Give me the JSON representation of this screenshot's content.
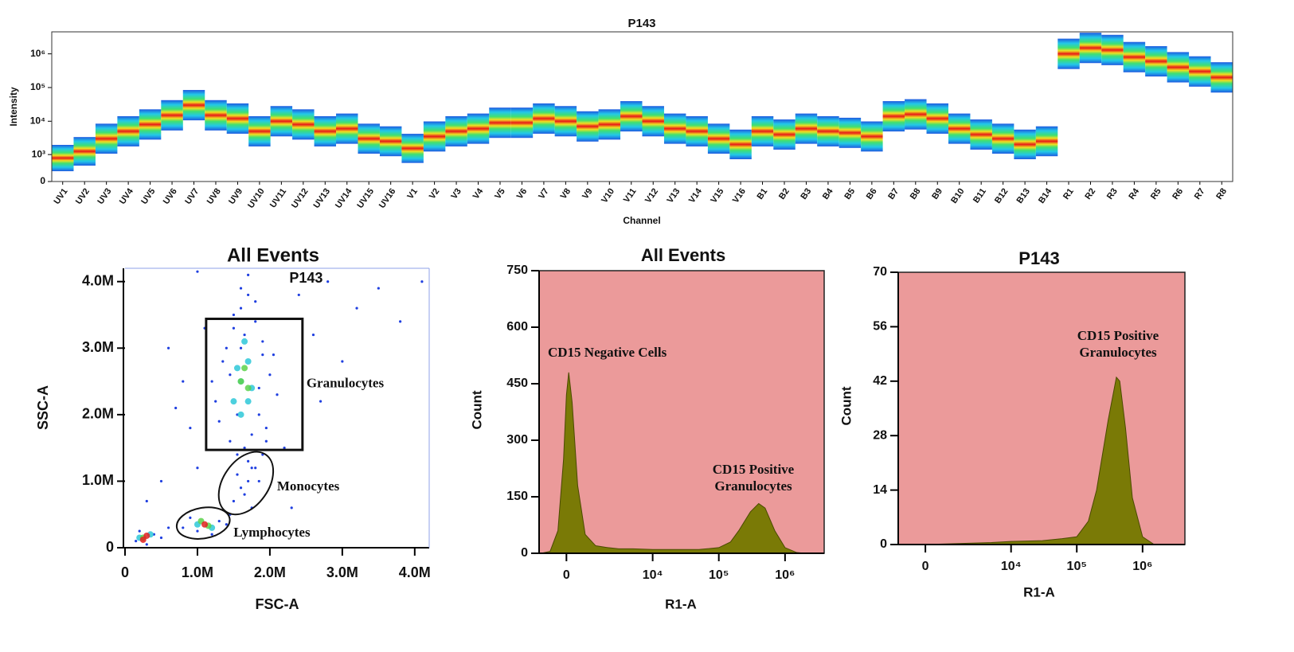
{
  "chart_data": [
    {
      "type": "spectrum",
      "title": "P143",
      "x_label": "Channel",
      "y_label": "Intensity",
      "yscale": "biexponential",
      "categories": [
        "UV1",
        "UV2",
        "UV3",
        "UV4",
        "UV5",
        "UV6",
        "UV7",
        "UV8",
        "UV9",
        "UV10",
        "UV11",
        "UV12",
        "UV13",
        "UV14",
        "UV15",
        "UV16",
        "V1",
        "V2",
        "V3",
        "V4",
        "V5",
        "V6",
        "V7",
        "V8",
        "V9",
        "V10",
        "V11",
        "V12",
        "V13",
        "V14",
        "V15",
        "V16",
        "B1",
        "B2",
        "B3",
        "B4",
        "B5",
        "B6",
        "B7",
        "B8",
        "B9",
        "B10",
        "B11",
        "B12",
        "B13",
        "B14",
        "R1",
        "R2",
        "R3",
        "R4",
        "R5",
        "R6",
        "R7",
        "R8"
      ],
      "values": [
        700,
        1200,
        3000,
        5000,
        8000,
        15000,
        30000,
        15000,
        12000,
        5000,
        10000,
        8000,
        5000,
        6000,
        3000,
        2500,
        1500,
        3500,
        5000,
        6000,
        9000,
        9000,
        12000,
        10000,
        7000,
        8000,
        14000,
        10000,
        6000,
        5000,
        3000,
        2000,
        5000,
        4000,
        6000,
        5000,
        4500,
        3500,
        14000,
        16000,
        12000,
        6000,
        4000,
        3000,
        2000,
        2500,
        1000000,
        1500000,
        1300000,
        800000,
        600000,
        400000,
        300000,
        200000
      ],
      "ylim": [
        0,
        4500000
      ],
      "yticks": [
        0,
        {
          "value": 1000,
          "label": "10³"
        },
        {
          "value": 10000,
          "label": "10⁴"
        },
        {
          "value": 100000,
          "label": "10⁵"
        },
        {
          "value": 1000000,
          "label": "10⁶"
        }
      ]
    },
    {
      "type": "scatter",
      "title": "All Events",
      "x_label": "FSC-A",
      "y_label": "SSC-A",
      "xlim": [
        0,
        4200000
      ],
      "ylim": [
        0,
        4200000
      ],
      "xticks": [
        0,
        {
          "value": 1000000,
          "label": "1.0M"
        },
        {
          "value": 2000000,
          "label": "2.0M"
        },
        {
          "value": 3000000,
          "label": "3.0M"
        },
        {
          "value": 4000000,
          "label": "4.0M"
        }
      ],
      "yticks": [
        0,
        {
          "value": 1000000,
          "label": "1.0M"
        },
        {
          "value": 2000000,
          "label": "2.0M"
        },
        {
          "value": 3000000,
          "label": "3.0M"
        },
        {
          "value": 4000000,
          "label": "4.0M"
        }
      ],
      "series": [
        {
          "color": "#1f3fe0",
          "x": [
            1200000,
            1400000,
            1500000,
            1600000,
            1700000,
            1800000,
            1900000,
            2000000,
            2100000,
            1300000,
            1450000,
            1550000,
            1650000,
            1750000,
            1850000,
            1950000,
            1350000,
            1500000,
            1600000,
            1700000,
            1800000,
            1900000,
            1250000,
            1450000,
            1650000,
            1850000,
            2050000,
            1550000,
            1750000,
            1600000,
            600000,
            800000,
            900000,
            1000000,
            700000,
            1100000,
            2400000,
            2600000,
            2800000,
            3000000,
            3200000,
            3500000,
            2200000,
            2700000,
            500000,
            300000,
            3800000,
            4100000,
            2300000,
            1000000,
            1500000,
            1600000,
            1700000,
            1800000,
            1900000,
            1550000,
            1650000,
            1750000,
            1850000,
            1450000,
            1950000,
            1700000,
            800000,
            900000,
            1000000,
            1200000,
            1300000,
            1400000,
            150000,
            200000,
            300000,
            400000,
            500000,
            600000
          ],
          "y": [
            2500000,
            3000000,
            3300000,
            3600000,
            3800000,
            3400000,
            3100000,
            2600000,
            2300000,
            1900000,
            1600000,
            2000000,
            1500000,
            1700000,
            2000000,
            1800000,
            2800000,
            3500000,
            3900000,
            4100000,
            3700000,
            2900000,
            2200000,
            2600000,
            3200000,
            2400000,
            2900000,
            1400000,
            1200000,
            3000000,
            3000000,
            2500000,
            1800000,
            1200000,
            2100000,
            3300000,
            3800000,
            3200000,
            4000000,
            2800000,
            3600000,
            3900000,
            1500000,
            2200000,
            1000000,
            700000,
            3400000,
            4000000,
            600000,
            4150000,
            700000,
            900000,
            1000000,
            1200000,
            1400000,
            1100000,
            800000,
            600000,
            1000000,
            500000,
            1600000,
            1300000,
            300000,
            450000,
            250000,
            200000,
            400000,
            350000,
            100000,
            250000,
            50000,
            200000,
            150000,
            300000
          ]
        },
        {
          "color": "#2ec8d8",
          "x": [
            1500000,
            1600000,
            1700000,
            1650000,
            1550000,
            1750000,
            1600000,
            1700000,
            1000000,
            1200000,
            200000,
            350000
          ],
          "y": [
            2200000,
            2500000,
            2800000,
            3100000,
            2700000,
            2400000,
            2000000,
            2200000,
            350000,
            300000,
            150000,
            200000
          ]
        },
        {
          "color": "#5cd24a",
          "x": [
            1600000,
            1650000,
            1700000,
            1050000,
            1150000,
            250000
          ],
          "y": [
            2500000,
            2700000,
            2400000,
            400000,
            330000,
            150000
          ]
        },
        {
          "color": "#e42020",
          "x": [
            1100000,
            250000,
            300000
          ],
          "y": [
            350000,
            120000,
            180000
          ]
        }
      ],
      "gates": [
        {
          "shape": "rect",
          "name": "P143",
          "label": "Granulocytes",
          "x": [
            1120000,
            2450000
          ],
          "y": [
            1470000,
            3440000
          ]
        },
        {
          "shape": "ellipse",
          "label": "Monocytes",
          "cx": 1670000,
          "cy": 970000,
          "rx": 480000,
          "ry": 340000,
          "angle": -55
        },
        {
          "shape": "ellipse",
          "label": "Lymphocytes",
          "cx": 1080000,
          "cy": 370000,
          "rx": 370000,
          "ry": 230000,
          "angle": -10
        }
      ]
    },
    {
      "type": "area",
      "title": "All Events",
      "x_label": "R1-A",
      "y_label": "Count",
      "xscale": "biexponential",
      "background": "#eb9a9a",
      "color": "#7a7a06",
      "xlim": [
        -1100,
        3900000
      ],
      "ylim": [
        0,
        750
      ],
      "xticks": [
        0,
        {
          "value": 10000,
          "label": "10⁴"
        },
        {
          "value": 100000,
          "label": "10⁵"
        },
        {
          "value": 1000000,
          "label": "10⁶"
        }
      ],
      "yticks": [
        0,
        150,
        300,
        450,
        600,
        750
      ],
      "x": [
        -1000,
        -600,
        -300,
        -100,
        0,
        80,
        200,
        400,
        700,
        1200,
        2000,
        3000,
        5000,
        10000,
        20000,
        50000,
        100000,
        150000,
        200000,
        300000,
        400000,
        500000,
        700000,
        1000000,
        1500000,
        2000000
      ],
      "values": [
        0,
        5,
        60,
        250,
        420,
        480,
        400,
        180,
        50,
        20,
        15,
        12,
        12,
        10,
        10,
        10,
        15,
        30,
        60,
        110,
        132,
        120,
        60,
        15,
        2,
        0
      ],
      "annotations": [
        [
          "CD15 Negative Cells"
        ],
        [
          "CD15 Positive",
          "Granulocytes"
        ]
      ]
    },
    {
      "type": "area",
      "title": "P143",
      "x_label": "R1-A",
      "y_label": "Count",
      "xscale": "biexponential",
      "background": "#eb9a9a",
      "color": "#7a7a06",
      "xlim": [
        -1100,
        4400000
      ],
      "ylim": [
        0,
        70
      ],
      "xticks": [
        0,
        {
          "value": 10000,
          "label": "10⁴"
        },
        {
          "value": 100000,
          "label": "10⁵"
        },
        {
          "value": 1000000,
          "label": "10⁶"
        }
      ],
      "yticks": [
        0,
        14,
        28,
        42,
        56,
        70
      ],
      "x": [
        -1000,
        0,
        5000,
        10000,
        30000,
        60000,
        100000,
        150000,
        200000,
        300000,
        400000,
        450000,
        550000,
        700000,
        1000000,
        1500000
      ],
      "values": [
        0,
        0,
        0.5,
        0.8,
        1,
        1.5,
        2,
        6,
        14,
        32,
        43,
        42,
        30,
        12,
        2,
        0
      ],
      "annotations": [
        [
          "CD15 Positive",
          "Granulocytes"
        ]
      ]
    }
  ]
}
